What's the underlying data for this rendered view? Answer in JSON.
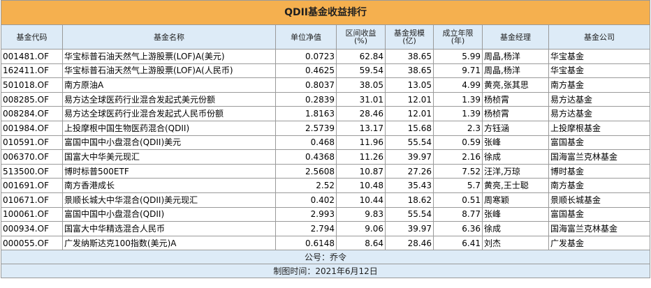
{
  "title": "QDII基金收益排行",
  "headers": {
    "code": "基金代码",
    "name": "基金名称",
    "nav": "单位净值",
    "return_line1": "区间收益",
    "return_line2": "(%)",
    "scale_line1": "基金规模",
    "scale_line2": "(亿)",
    "years_line1": "成立年限",
    "years_line2": "(年)",
    "manager": "基金经理",
    "company": "基金公司"
  },
  "rows": [
    {
      "code": "001481.OF",
      "name": "华宝标普石油天然气上游股票(LOF)A(美元)",
      "nav": "0.0723",
      "ret": "62.84",
      "scale": "38.65",
      "years": "5.99",
      "manager": "周晶,杨洋",
      "company": "华宝基金"
    },
    {
      "code": "162411.OF",
      "name": "华宝标普石油天然气上游股票(LOF)A(人民币)",
      "nav": "0.4625",
      "ret": "59.54",
      "scale": "38.65",
      "years": "9.71",
      "manager": "周晶,杨洋",
      "company": "华宝基金"
    },
    {
      "code": "501018.OF",
      "name": "南方原油A",
      "nav": "0.8037",
      "ret": "38.05",
      "scale": "13.05",
      "years": "4.99",
      "manager": "黄亮,张其思",
      "company": "南方基金"
    },
    {
      "code": "008285.OF",
      "name": "易方达全球医药行业混合发起式美元份额",
      "nav": "0.2839",
      "ret": "31.01",
      "scale": "12.01",
      "years": "1.39",
      "manager": "杨桢霄",
      "company": "易方达基金"
    },
    {
      "code": "008284.OF",
      "name": "易方达全球医药行业混合发起式人民币份额",
      "nav": "1.8163",
      "ret": "28.46",
      "scale": "12.01",
      "years": "1.39",
      "manager": "杨桢霄",
      "company": "易方达基金"
    },
    {
      "code": "001984.OF",
      "name": "上投摩根中国生物医药混合(QDII)",
      "nav": "2.5739",
      "ret": "13.17",
      "scale": "15.68",
      "years": "2.3",
      "manager": "方钰涵",
      "company": "上投摩根基金"
    },
    {
      "code": "010591.OF",
      "name": "富国中国中小盘混合(QDII)美元",
      "nav": "0.468",
      "ret": "11.96",
      "scale": "55.54",
      "years": "0.59",
      "manager": "张峰",
      "company": "富国基金"
    },
    {
      "code": "006370.OF",
      "name": "国富大中华美元现汇",
      "nav": "0.4368",
      "ret": "11.26",
      "scale": "39.97",
      "years": "2.16",
      "manager": "徐成",
      "company": "国海富兰克林基金"
    },
    {
      "code": "513500.OF",
      "name": "博时标普500ETF",
      "nav": "2.5608",
      "ret": "10.87",
      "scale": "27.26",
      "years": "7.52",
      "manager": "汪洋,万琼",
      "company": "博时基金"
    },
    {
      "code": "001691.OF",
      "name": "南方香港成长",
      "nav": "2.52",
      "ret": "10.48",
      "scale": "35.43",
      "years": "5.7",
      "manager": "黄亮,王士聪",
      "company": "南方基金"
    },
    {
      "code": "010671.OF",
      "name": "景顺长城大中华混合(QDII)美元现汇",
      "nav": "0.402",
      "ret": "10.44",
      "scale": "18.62",
      "years": "0.51",
      "manager": "周寒颖",
      "company": "景顺长城基金"
    },
    {
      "code": "100061.OF",
      "name": "富国中国中小盘混合(QDII)",
      "nav": "2.993",
      "ret": "9.83",
      "scale": "55.54",
      "years": "8.77",
      "manager": "张峰",
      "company": "富国基金"
    },
    {
      "code": "000934.OF",
      "name": "国富大中华精选混合人民币",
      "nav": "2.794",
      "ret": "9.06",
      "scale": "39.97",
      "years": "6.36",
      "manager": "徐成",
      "company": "国海富兰克林基金"
    },
    {
      "code": "000055.OF",
      "name": "广发纳斯达克100指数(美元)A",
      "nav": "0.6148",
      "ret": "8.64",
      "scale": "28.46",
      "years": "6.41",
      "manager": "刘杰",
      "company": "广发基金"
    }
  ],
  "footer": {
    "source": "公号：乔令",
    "date": "制图时间：2021年6月12日"
  },
  "colors": {
    "title_bg": "#f5b04f",
    "header_bg": "#ddebf7",
    "border": "#9a9a9a"
  }
}
